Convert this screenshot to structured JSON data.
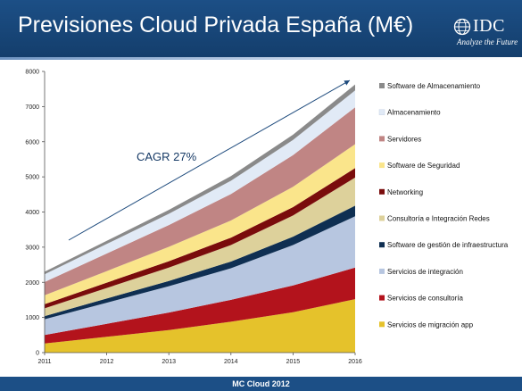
{
  "header": {
    "title": "Previsiones Cloud Privada España (M€)",
    "logo_text": "IDC",
    "logo_tagline": "Analyze the Future"
  },
  "footer": {
    "text": "MC Cloud 2012"
  },
  "chart_data": {
    "type": "area",
    "stacked": true,
    "x": [
      "2011",
      "2012",
      "2013",
      "2014",
      "2015",
      "2016"
    ],
    "ylim": [
      0,
      8000
    ],
    "yticks": [
      0,
      1000,
      2000,
      3000,
      4000,
      5000,
      6000,
      7000,
      8000
    ],
    "grid": false,
    "legend_position": "right",
    "annotation": "CAGR 27%",
    "series": [
      {
        "name": "Servicios de migración app",
        "color": "#e5c22b",
        "values": [
          260,
          450,
          640,
          880,
          1150,
          1520
        ]
      },
      {
        "name": "Servicios de consultoría",
        "color": "#b3131c",
        "values": [
          240,
          370,
          500,
          620,
          760,
          900
        ]
      },
      {
        "name": "Servicios de integración",
        "color": "#b7c6e0",
        "values": [
          450,
          600,
          750,
          900,
          1150,
          1460
        ]
      },
      {
        "name": "Software de gestión de infraestructura",
        "color": "#0f2f52",
        "values": [
          90,
          120,
          150,
          190,
          240,
          300
        ]
      },
      {
        "name": "Consultoría e Integración Redes",
        "color": "#ddd19b",
        "values": [
          220,
          300,
          380,
          470,
          600,
          800
        ]
      },
      {
        "name": "Networking",
        "color": "#7a0c0c",
        "values": [
          120,
          150,
          180,
          210,
          240,
          270
        ]
      },
      {
        "name": "Software de Seguridad",
        "color": "#fae58b",
        "values": [
          250,
          330,
          410,
          490,
          580,
          680
        ]
      },
      {
        "name": "Servidores",
        "color": "#c08584",
        "values": [
          380,
          500,
          620,
          750,
          900,
          1050
        ]
      },
      {
        "name": "Almacenamiento",
        "color": "#e1eaf6",
        "values": [
          220,
          270,
          320,
          380,
          430,
          480
        ]
      },
      {
        "name": "Software de Almacenamiento",
        "color": "#8a8a8a",
        "values": [
          70,
          90,
          110,
          130,
          150,
          170
        ]
      }
    ]
  }
}
